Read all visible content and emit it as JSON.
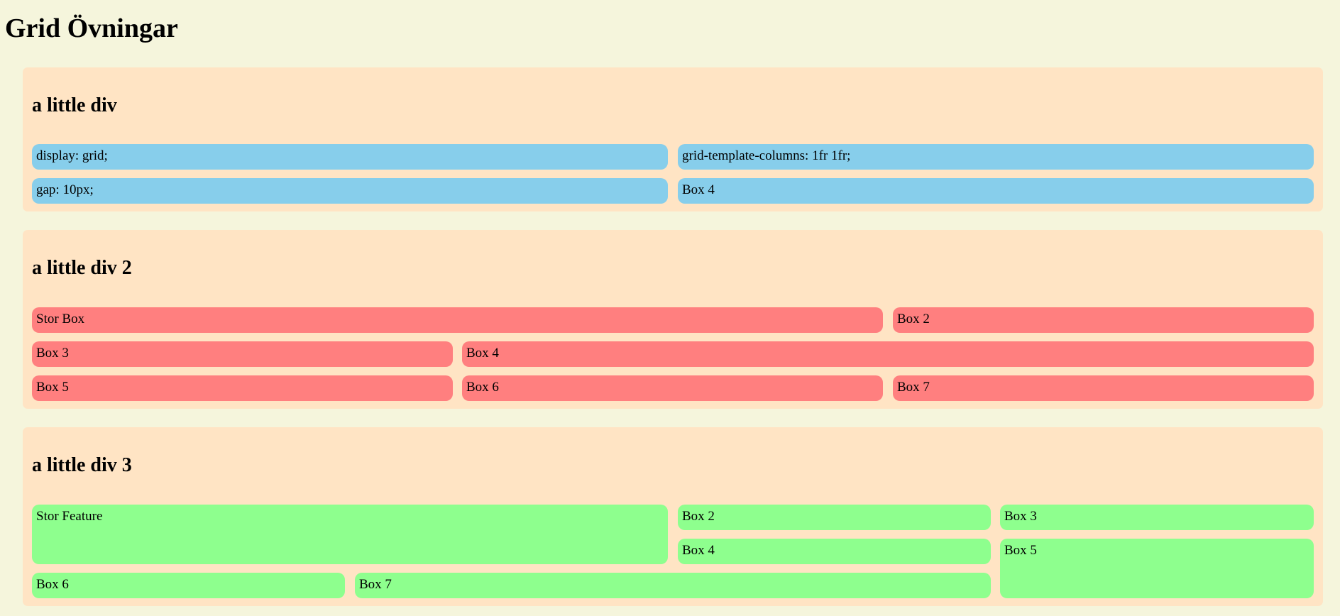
{
  "page": {
    "title": "Grid Övningar"
  },
  "sections": [
    {
      "title": "a little div",
      "boxes": [
        "display: grid;",
        "grid-template-columns: 1fr 1fr;",
        "gap: 10px;",
        "Box 4"
      ]
    },
    {
      "title": "a little div 2",
      "boxes": [
        "Stor Box",
        "Box 2",
        "Box 3",
        "Box 4",
        "Box 5",
        "Box 6",
        "Box 7"
      ]
    },
    {
      "title": "a little div 3",
      "boxes": [
        "Stor Feature",
        "Box 2",
        "Box 3",
        "Box 4",
        "Box 5",
        "Box 6",
        "Box 7"
      ]
    }
  ],
  "colors": {
    "page_background": "#f5f5dc",
    "section_background": "#ffe4c4",
    "grid1_box": "#87ceeb",
    "grid2_box": "#ff7f7f",
    "grid3_box": "#8eff8e"
  }
}
